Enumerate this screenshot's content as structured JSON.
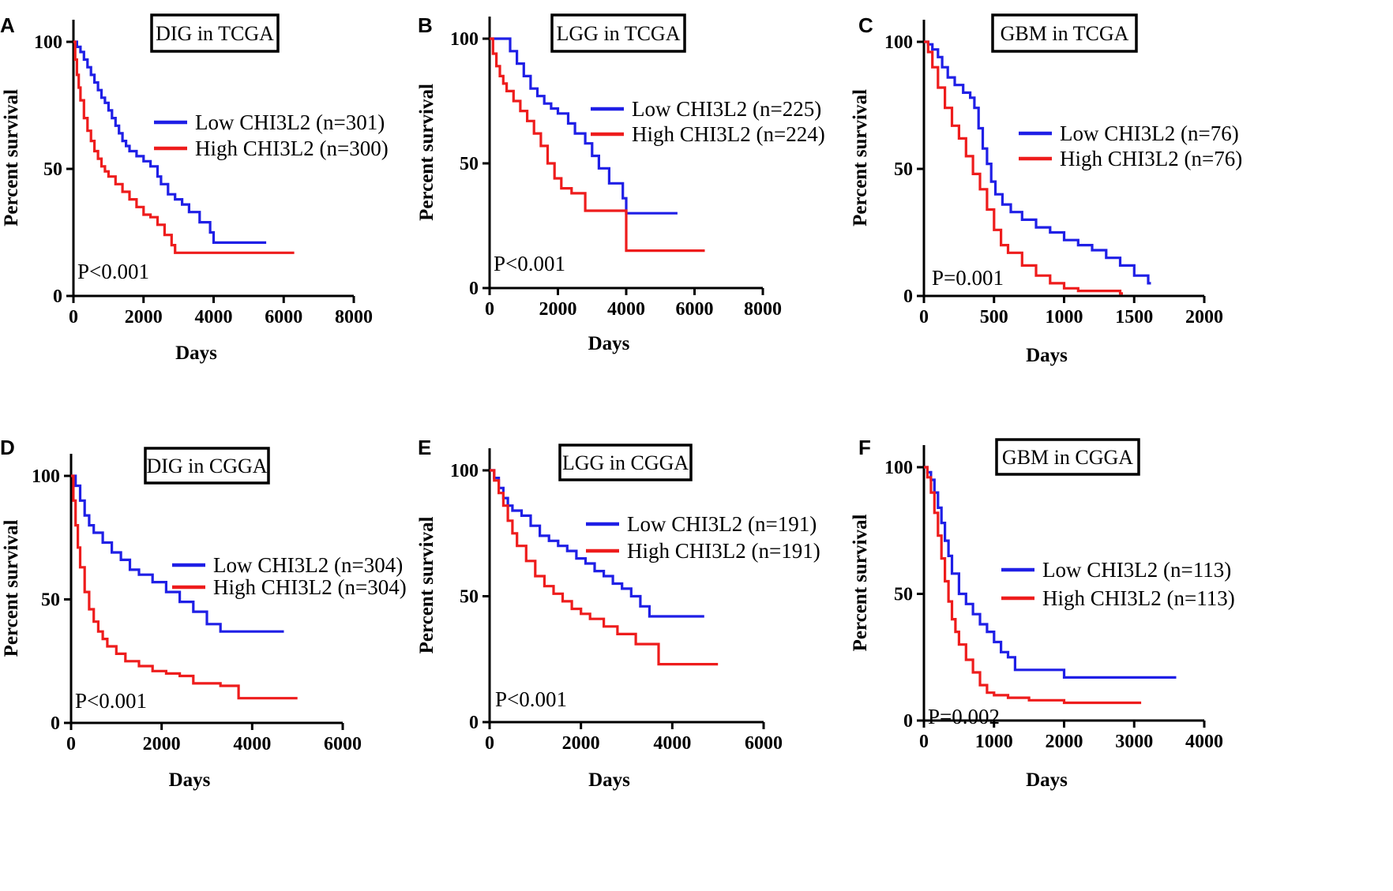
{
  "figure": {
    "colors": {
      "low": "#1f1fe6",
      "high": "#ee1c1c",
      "axis": "#000000"
    },
    "icon": "kaplan-meier-grid"
  },
  "chart_data": [
    {
      "panel": "A",
      "type": "line",
      "title": "DIG in TCGA",
      "xlabel": "Days",
      "ylabel": "Percent survival",
      "xlim": [
        0,
        8000
      ],
      "ylim": [
        0,
        100
      ],
      "xticks": [
        "0",
        "2000",
        "4000",
        "6000",
        "8000"
      ],
      "yticks": [
        "0",
        "50",
        "100"
      ],
      "xtick_values": [
        0,
        2000,
        4000,
        6000,
        8000
      ],
      "ytick_values": [
        0,
        50,
        100
      ],
      "pvalue": "P<0.001",
      "series": [
        {
          "name": "Low CHI3L2 (n=301)",
          "group": "low",
          "x": [
            0,
            100,
            200,
            300,
            400,
            500,
            600,
            700,
            800,
            900,
            1000,
            1100,
            1200,
            1300,
            1400,
            1500,
            1600,
            1800,
            2000,
            2200,
            2400,
            2500,
            2700,
            2900,
            3100,
            3300,
            3600,
            3900,
            4000,
            5500
          ],
          "y": [
            100,
            98,
            96,
            93,
            90,
            87,
            84,
            81,
            78,
            76,
            73,
            70,
            67,
            64,
            61,
            59,
            57,
            55,
            53,
            51,
            47,
            44,
            40,
            38,
            36,
            33,
            29,
            25,
            21,
            21
          ]
        },
        {
          "name": "High CHI3L2 (n=300)",
          "group": "high",
          "x": [
            0,
            50,
            100,
            150,
            200,
            300,
            400,
            500,
            600,
            700,
            800,
            900,
            1000,
            1200,
            1400,
            1600,
            1800,
            2000,
            2200,
            2400,
            2600,
            2800,
            2900,
            6300
          ],
          "y": [
            100,
            93,
            87,
            82,
            77,
            70,
            65,
            61,
            57,
            54,
            51,
            49,
            47,
            44,
            41,
            38,
            35,
            32,
            31,
            28,
            24,
            20,
            17,
            17
          ]
        }
      ]
    },
    {
      "panel": "B",
      "type": "line",
      "title": "LGG in TCGA",
      "xlabel": "Days",
      "ylabel": "Percent survival",
      "xlim": [
        0,
        8000
      ],
      "ylim": [
        0,
        100
      ],
      "xticks": [
        "0",
        "2000",
        "4000",
        "6000",
        "8000"
      ],
      "yticks": [
        "0",
        "50",
        "100"
      ],
      "xtick_values": [
        0,
        2000,
        4000,
        6000,
        8000
      ],
      "ytick_values": [
        0,
        50,
        100
      ],
      "pvalue": "P<0.001",
      "series": [
        {
          "name": "Low CHI3L2 (n=225)",
          "group": "low",
          "x": [
            0,
            500,
            600,
            800,
            1000,
            1200,
            1400,
            1600,
            1800,
            2000,
            2300,
            2500,
            2800,
            3000,
            3200,
            3500,
            3900,
            4000,
            5500
          ],
          "y": [
            100,
            100,
            95,
            90,
            85,
            80,
            77,
            74,
            72,
            70,
            66,
            62,
            58,
            53,
            48,
            42,
            36,
            30,
            30
          ]
        },
        {
          "name": "High CHI3L2 (n=224)",
          "group": "high",
          "x": [
            0,
            100,
            200,
            300,
            400,
            500,
            700,
            900,
            1100,
            1300,
            1500,
            1700,
            1900,
            2100,
            2400,
            2800,
            4000,
            6300
          ],
          "y": [
            100,
            94,
            89,
            85,
            82,
            79,
            75,
            71,
            67,
            62,
            57,
            50,
            44,
            40,
            38,
            31,
            15,
            15
          ]
        }
      ]
    },
    {
      "panel": "C",
      "type": "line",
      "title": "GBM in TCGA",
      "xlabel": "Days",
      "ylabel": "Percent survival",
      "xlim": [
        0,
        2000
      ],
      "ylim": [
        0,
        100
      ],
      "xticks": [
        "0",
        "500",
        "1000",
        "1500",
        "2000"
      ],
      "yticks": [
        "0",
        "50",
        "100"
      ],
      "xtick_values": [
        0,
        500,
        1000,
        1500,
        2000
      ],
      "ytick_values": [
        0,
        50,
        100
      ],
      "pvalue": "P=0.001",
      "series": [
        {
          "name": "Low CHI3L2 (n=76)",
          "group": "low",
          "x": [
            0,
            30,
            60,
            100,
            130,
            170,
            220,
            280,
            330,
            360,
            390,
            420,
            450,
            480,
            510,
            560,
            620,
            700,
            800,
            900,
            1000,
            1100,
            1200,
            1300,
            1400,
            1500,
            1600,
            1620
          ],
          "y": [
            100,
            99,
            97,
            94,
            90,
            86,
            83,
            80,
            78,
            74,
            66,
            58,
            52,
            45,
            40,
            36,
            33,
            30,
            27,
            25,
            22,
            20,
            18,
            15,
            12,
            8,
            5,
            5
          ]
        },
        {
          "name": "High CHI3L2 (n=76)",
          "group": "high",
          "x": [
            0,
            30,
            60,
            100,
            150,
            200,
            250,
            300,
            350,
            400,
            450,
            500,
            550,
            600,
            700,
            800,
            900,
            1000,
            1100,
            1200,
            1300,
            1400,
            1420
          ],
          "y": [
            100,
            96,
            90,
            82,
            74,
            67,
            62,
            55,
            48,
            42,
            34,
            26,
            20,
            17,
            12,
            8,
            5,
            3,
            2,
            2,
            2,
            1,
            1
          ]
        }
      ]
    },
    {
      "panel": "D",
      "type": "line",
      "title": "DIG in CGGA",
      "xlabel": "Days",
      "ylabel": "Percent survival",
      "xlim": [
        0,
        6000
      ],
      "ylim": [
        0,
        100
      ],
      "xticks": [
        "0",
        "2000",
        "4000",
        "6000"
      ],
      "yticks": [
        "0",
        "50",
        "100"
      ],
      "xtick_values": [
        0,
        2000,
        4000,
        6000
      ],
      "ytick_values": [
        0,
        50,
        100
      ],
      "pvalue": "P<0.001",
      "series": [
        {
          "name": "Low CHI3L2 (n=304)",
          "group": "low",
          "x": [
            0,
            100,
            200,
            300,
            400,
            500,
            700,
            900,
            1100,
            1300,
            1500,
            1800,
            2100,
            2400,
            2700,
            3000,
            3300,
            4700
          ],
          "y": [
            100,
            96,
            90,
            84,
            80,
            77,
            73,
            69,
            66,
            62,
            60,
            57,
            53,
            49,
            45,
            40,
            37,
            37
          ]
        },
        {
          "name": "High CHI3L2 (n=304)",
          "group": "high",
          "x": [
            0,
            50,
            100,
            150,
            200,
            300,
            400,
            500,
            600,
            700,
            800,
            1000,
            1200,
            1500,
            1800,
            2100,
            2400,
            2700,
            3000,
            3300,
            3700,
            5000
          ],
          "y": [
            100,
            90,
            80,
            71,
            63,
            53,
            46,
            41,
            37,
            34,
            31,
            28,
            25,
            23,
            21,
            20,
            19,
            16,
            16,
            15,
            10,
            10
          ]
        }
      ]
    },
    {
      "panel": "E",
      "type": "line",
      "title": "LGG in CGGA",
      "xlabel": "Days",
      "ylabel": "Percent survival",
      "xlim": [
        0,
        6000
      ],
      "ylim": [
        0,
        100
      ],
      "xticks": [
        "0",
        "2000",
        "4000",
        "6000"
      ],
      "yticks": [
        "0",
        "50",
        "100"
      ],
      "xtick_values": [
        0,
        2000,
        4000,
        6000
      ],
      "ytick_values": [
        0,
        50,
        100
      ],
      "pvalue": "P<0.001",
      "series": [
        {
          "name": "Low CHI3L2 (n=191)",
          "group": "low",
          "x": [
            0,
            100,
            200,
            300,
            400,
            500,
            700,
            900,
            1100,
            1300,
            1500,
            1700,
            1900,
            2100,
            2300,
            2500,
            2700,
            2900,
            3100,
            3300,
            3500,
            4700
          ],
          "y": [
            100,
            97,
            93,
            89,
            86,
            84,
            82,
            78,
            74,
            72,
            70,
            68,
            65,
            63,
            60,
            58,
            55,
            53,
            50,
            46,
            42,
            42
          ]
        },
        {
          "name": "High CHI3L2 (n=191)",
          "group": "high",
          "x": [
            0,
            100,
            200,
            300,
            400,
            500,
            600,
            800,
            1000,
            1200,
            1400,
            1600,
            1800,
            2000,
            2200,
            2500,
            2800,
            3200,
            3700,
            5000
          ],
          "y": [
            100,
            96,
            91,
            86,
            80,
            75,
            70,
            64,
            58,
            54,
            51,
            48,
            45,
            43,
            41,
            38,
            35,
            31,
            23,
            23
          ]
        }
      ]
    },
    {
      "panel": "F",
      "type": "line",
      "title": "GBM in CGGA",
      "xlabel": "Days",
      "ylabel": "Percent survival",
      "xlim": [
        0,
        4000
      ],
      "ylim": [
        0,
        100
      ],
      "xticks": [
        "0",
        "1000",
        "2000",
        "3000",
        "4000"
      ],
      "yticks": [
        "0",
        "50",
        "100"
      ],
      "xtick_values": [
        0,
        1000,
        2000,
        3000,
        4000
      ],
      "ytick_values": [
        0,
        50,
        100
      ],
      "pvalue": "P=0.002",
      "series": [
        {
          "name": "Low CHI3L2 (n=113)",
          "group": "low",
          "x": [
            0,
            50,
            100,
            150,
            200,
            250,
            300,
            350,
            400,
            500,
            600,
            700,
            800,
            900,
            1000,
            1100,
            1200,
            1300,
            1500,
            1700,
            2000,
            2500,
            3000,
            3600
          ],
          "y": [
            100,
            98,
            95,
            90,
            84,
            78,
            71,
            65,
            58,
            50,
            46,
            42,
            38,
            35,
            31,
            27,
            25,
            20,
            20,
            20,
            17,
            17,
            17,
            17
          ]
        },
        {
          "name": "High CHI3L2 (n=113)",
          "group": "high",
          "x": [
            0,
            50,
            100,
            150,
            200,
            250,
            300,
            350,
            400,
            450,
            500,
            600,
            700,
            800,
            900,
            1000,
            1200,
            1500,
            2000,
            2500,
            3100
          ],
          "y": [
            100,
            96,
            90,
            82,
            73,
            64,
            55,
            47,
            40,
            35,
            30,
            24,
            19,
            14,
            11,
            10,
            9,
            8,
            7,
            7,
            7
          ]
        }
      ]
    }
  ]
}
